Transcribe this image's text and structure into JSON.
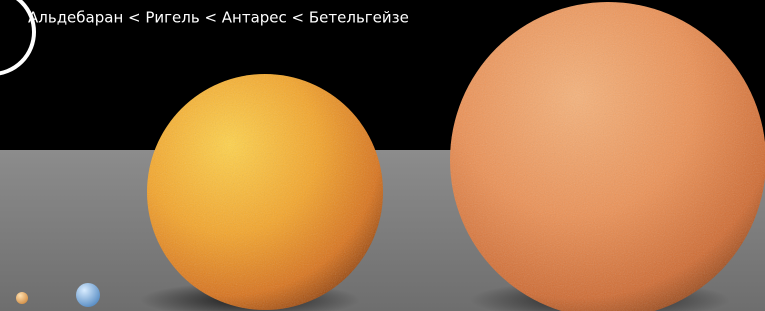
{
  "caption": "Альдебаран < Ригель < Антарес < Бетельгейзе"
}
